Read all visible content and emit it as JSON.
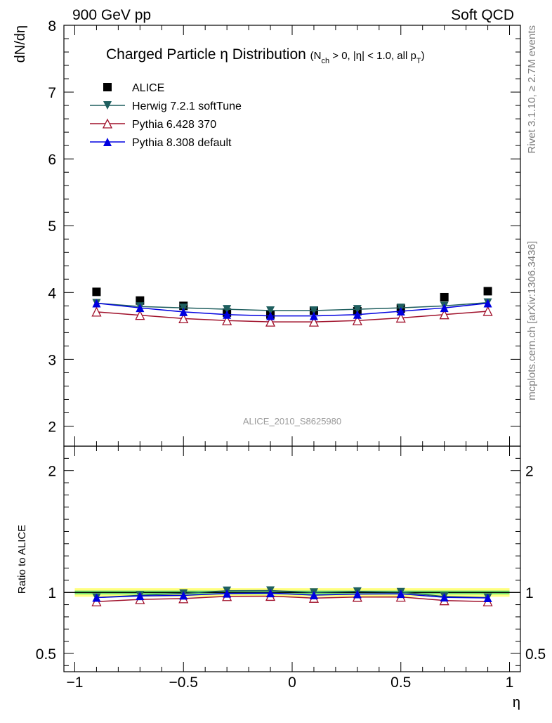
{
  "header": {
    "left": "900 GeV pp",
    "right": "Soft QCD"
  },
  "side_labels": {
    "rivet": "Rivet 3.1.10, ≥ 2.7M events",
    "mcplots": "mcplots.cern.ch [arXiv:1306.3436]"
  },
  "watermark": "ALICE_2010_S8625980",
  "chart_data": [
    {
      "type": "line",
      "panel": "main",
      "title": "Charged Particle η Distribution",
      "subtitle": "(N_ch > 0, |η| < 1.0, all p_T)",
      "subtitle_parts": {
        "open": "(N",
        "ch_sub": "ch",
        "mid": " > 0, |η| < 1.0, all p",
        "pt_sub": "T",
        "close": ")"
      },
      "xlabel": "η",
      "ylabel": "dN/dη",
      "xlim": [
        -1.05,
        1.05
      ],
      "ylim": [
        1.7,
        8.0
      ],
      "yticks": [
        2,
        3,
        4,
        5,
        6,
        7,
        8
      ],
      "x": [
        -0.9,
        -0.7,
        -0.5,
        -0.3,
        -0.1,
        0.1,
        0.3,
        0.5,
        0.7,
        0.9
      ],
      "legend_position": "top-left",
      "series": [
        {
          "name": "ALICE",
          "marker": "square",
          "color": "#000000",
          "values": [
            4.01,
            3.88,
            3.8,
            3.7,
            3.67,
            3.73,
            3.72,
            3.76,
            3.93,
            4.02
          ]
        },
        {
          "name": "Herwig 7.2.1 softTune",
          "marker": "triangle-down",
          "color": "#1f5f5f",
          "values": [
            3.84,
            3.79,
            3.77,
            3.75,
            3.73,
            3.73,
            3.75,
            3.77,
            3.8,
            3.85
          ]
        },
        {
          "name": "Pythia 6.428 370",
          "marker": "triangle-up-open",
          "color": "#a0102a",
          "values": [
            3.71,
            3.66,
            3.61,
            3.58,
            3.56,
            3.56,
            3.58,
            3.62,
            3.67,
            3.72
          ]
        },
        {
          "name": "Pythia 8.308 default",
          "marker": "triangle-up",
          "color": "#0000e0",
          "values": [
            3.84,
            3.77,
            3.71,
            3.67,
            3.65,
            3.65,
            3.67,
            3.72,
            3.77,
            3.84
          ]
        }
      ]
    },
    {
      "type": "line",
      "panel": "ratio",
      "xlabel": "η",
      "ylabel": "Ratio to ALICE",
      "xlim": [
        -1.05,
        1.05
      ],
      "ylim": [
        0.35,
        2.2
      ],
      "yticks": [
        0.5,
        1,
        2
      ],
      "ytick_labels": [
        "0.5",
        "1",
        "2"
      ],
      "xticks": [
        -1,
        -0.5,
        0,
        0.5,
        1
      ],
      "xtick_labels": [
        "−1",
        "−0.5",
        "0",
        "0.5",
        "1"
      ],
      "band": {
        "inner": [
          0.985,
          1.015
        ],
        "outer": [
          0.965,
          1.035
        ],
        "inner_color": "#6fe06f",
        "outer_color": "#ffff80"
      },
      "x": [
        -0.9,
        -0.7,
        -0.5,
        -0.3,
        -0.1,
        0.1,
        0.3,
        0.5,
        0.7,
        0.9
      ],
      "series": [
        {
          "name": "Herwig 7.2.1 softTune",
          "marker": "triangle-down",
          "color": "#1f5f5f",
          "values": [
            0.958,
            0.977,
            0.992,
            1.014,
            1.016,
            1.0,
            1.008,
            1.003,
            0.967,
            0.958
          ]
        },
        {
          "name": "Pythia 6.428 370",
          "marker": "triangle-up-open",
          "color": "#a0102a",
          "values": [
            0.925,
            0.943,
            0.95,
            0.968,
            0.97,
            0.954,
            0.962,
            0.963,
            0.934,
            0.925
          ]
        },
        {
          "name": "Pythia 8.308 default",
          "marker": "triangle-up",
          "color": "#0000e0",
          "values": [
            0.958,
            0.972,
            0.976,
            0.992,
            0.995,
            0.978,
            0.987,
            0.989,
            0.96,
            0.955
          ]
        }
      ]
    }
  ]
}
